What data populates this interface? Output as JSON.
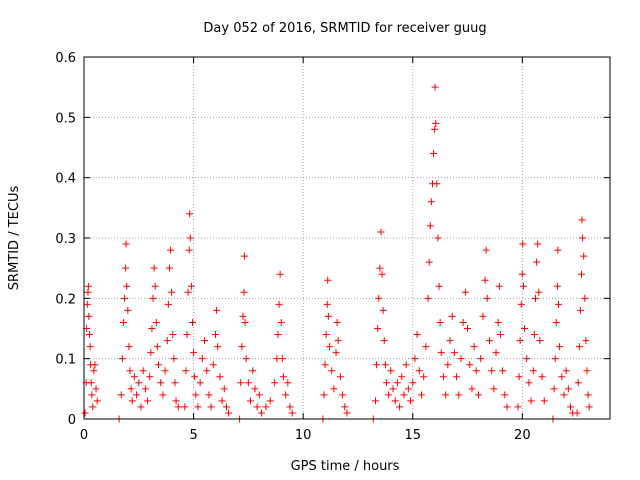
{
  "chart_data": {
    "type": "scatter",
    "title": "Day 052 of 2016, SRMTID for receiver guug",
    "xlabel": "GPS time / hours",
    "ylabel": "SRMTID / TECUs",
    "xlim": [
      0,
      24
    ],
    "ylim": [
      0,
      0.6
    ],
    "xticks": [
      0,
      5,
      10,
      15,
      20
    ],
    "yticks": [
      0,
      0.1,
      0.2,
      0.3,
      0.4,
      0.5,
      0.6
    ],
    "grid": true,
    "marker": "plus",
    "marker_color": "#ff0000",
    "series": [
      {
        "points": [
          [
            0.05,
            0.01
          ],
          [
            0.1,
            0.06
          ],
          [
            0.12,
            0.15
          ],
          [
            0.15,
            0.19
          ],
          [
            0.18,
            0.21
          ],
          [
            0.2,
            0.22
          ],
          [
            0.22,
            0.17
          ],
          [
            0.25,
            0.14
          ],
          [
            0.28,
            0.12
          ],
          [
            0.3,
            0.09
          ],
          [
            0.33,
            0.06
          ],
          [
            0.36,
            0.04
          ],
          [
            0.4,
            0.02
          ],
          [
            0.45,
            0.08
          ],
          [
            0.5,
            0.09
          ],
          [
            0.55,
            0.05
          ],
          [
            0.6,
            0.03
          ],
          [
            1.6,
            0.0
          ],
          [
            1.7,
            0.04
          ],
          [
            1.75,
            0.1
          ],
          [
            1.8,
            0.16
          ],
          [
            1.85,
            0.2
          ],
          [
            1.9,
            0.25
          ],
          [
            1.92,
            0.29
          ],
          [
            1.95,
            0.22
          ],
          [
            2.0,
            0.18
          ],
          [
            2.05,
            0.12
          ],
          [
            2.1,
            0.08
          ],
          [
            2.15,
            0.05
          ],
          [
            2.2,
            0.03
          ],
          [
            2.3,
            0.07
          ],
          [
            2.4,
            0.04
          ],
          [
            2.5,
            0.06
          ],
          [
            2.6,
            0.02
          ],
          [
            2.7,
            0.08
          ],
          [
            2.8,
            0.05
          ],
          [
            2.9,
            0.03
          ],
          [
            3.0,
            0.07
          ],
          [
            3.05,
            0.11
          ],
          [
            3.1,
            0.15
          ],
          [
            3.15,
            0.2
          ],
          [
            3.2,
            0.25
          ],
          [
            3.25,
            0.22
          ],
          [
            3.3,
            0.16
          ],
          [
            3.35,
            0.12
          ],
          [
            3.4,
            0.09
          ],
          [
            3.5,
            0.06
          ],
          [
            3.6,
            0.04
          ],
          [
            3.7,
            0.08
          ],
          [
            3.8,
            0.13
          ],
          [
            3.85,
            0.19
          ],
          [
            3.9,
            0.25
          ],
          [
            3.95,
            0.28
          ],
          [
            4.0,
            0.21
          ],
          [
            4.05,
            0.14
          ],
          [
            4.1,
            0.1
          ],
          [
            4.15,
            0.06
          ],
          [
            4.2,
            0.03
          ],
          [
            4.3,
            0.02
          ],
          [
            4.6,
            0.02
          ],
          [
            4.65,
            0.08
          ],
          [
            4.7,
            0.14
          ],
          [
            4.75,
            0.21
          ],
          [
            4.8,
            0.28
          ],
          [
            4.82,
            0.34
          ],
          [
            4.85,
            0.3
          ],
          [
            4.9,
            0.22
          ],
          [
            4.95,
            0.16
          ],
          [
            5.0,
            0.11
          ],
          [
            5.05,
            0.07
          ],
          [
            5.1,
            0.04
          ],
          [
            5.2,
            0.02
          ],
          [
            5.3,
            0.06
          ],
          [
            5.4,
            0.1
          ],
          [
            5.5,
            0.13
          ],
          [
            5.6,
            0.08
          ],
          [
            5.7,
            0.04
          ],
          [
            5.8,
            0.02
          ],
          [
            5.9,
            0.09
          ],
          [
            6.0,
            0.14
          ],
          [
            6.05,
            0.18
          ],
          [
            6.1,
            0.12
          ],
          [
            6.2,
            0.07
          ],
          [
            6.3,
            0.03
          ],
          [
            6.4,
            0.05
          ],
          [
            6.5,
            0.02
          ],
          [
            6.6,
            0.01
          ],
          [
            7.1,
            0.0
          ],
          [
            7.15,
            0.06
          ],
          [
            7.2,
            0.12
          ],
          [
            7.25,
            0.17
          ],
          [
            7.3,
            0.21
          ],
          [
            7.32,
            0.27
          ],
          [
            7.35,
            0.16
          ],
          [
            7.4,
            0.1
          ],
          [
            7.5,
            0.06
          ],
          [
            7.6,
            0.03
          ],
          [
            7.7,
            0.08
          ],
          [
            7.8,
            0.05
          ],
          [
            7.9,
            0.02
          ],
          [
            8.0,
            0.04
          ],
          [
            8.1,
            0.01
          ],
          [
            8.3,
            0.02
          ],
          [
            8.5,
            0.03
          ],
          [
            8.7,
            0.06
          ],
          [
            8.8,
            0.1
          ],
          [
            8.85,
            0.14
          ],
          [
            8.9,
            0.19
          ],
          [
            8.95,
            0.24
          ],
          [
            9.0,
            0.16
          ],
          [
            9.05,
            0.1
          ],
          [
            9.1,
            0.07
          ],
          [
            9.2,
            0.04
          ],
          [
            9.3,
            0.06
          ],
          [
            9.4,
            0.02
          ],
          [
            9.5,
            0.01
          ],
          [
            10.9,
            0.0
          ],
          [
            10.95,
            0.04
          ],
          [
            11.0,
            0.09
          ],
          [
            11.05,
            0.14
          ],
          [
            11.1,
            0.19
          ],
          [
            11.12,
            0.23
          ],
          [
            11.15,
            0.17
          ],
          [
            11.2,
            0.12
          ],
          [
            11.3,
            0.08
          ],
          [
            11.4,
            0.05
          ],
          [
            11.5,
            0.11
          ],
          [
            11.55,
            0.16
          ],
          [
            11.6,
            0.13
          ],
          [
            11.7,
            0.07
          ],
          [
            11.8,
            0.04
          ],
          [
            11.9,
            0.02
          ],
          [
            12.0,
            0.01
          ],
          [
            13.2,
            0.0
          ],
          [
            13.3,
            0.03
          ],
          [
            13.35,
            0.09
          ],
          [
            13.4,
            0.15
          ],
          [
            13.45,
            0.2
          ],
          [
            13.5,
            0.25
          ],
          [
            13.55,
            0.31
          ],
          [
            13.6,
            0.24
          ],
          [
            13.65,
            0.18
          ],
          [
            13.7,
            0.13
          ],
          [
            13.75,
            0.09
          ],
          [
            13.8,
            0.06
          ],
          [
            13.9,
            0.04
          ],
          [
            14.0,
            0.08
          ],
          [
            14.1,
            0.05
          ],
          [
            14.2,
            0.03
          ],
          [
            14.3,
            0.06
          ],
          [
            14.4,
            0.02
          ],
          [
            14.5,
            0.07
          ],
          [
            14.6,
            0.04
          ],
          [
            14.7,
            0.09
          ],
          [
            14.8,
            0.05
          ],
          [
            14.9,
            0.03
          ],
          [
            15.0,
            0.06
          ],
          [
            15.1,
            0.1
          ],
          [
            15.2,
            0.14
          ],
          [
            15.3,
            0.08
          ],
          [
            15.4,
            0.04
          ],
          [
            15.5,
            0.07
          ],
          [
            15.6,
            0.12
          ],
          [
            15.7,
            0.2
          ],
          [
            15.75,
            0.26
          ],
          [
            15.8,
            0.32
          ],
          [
            15.85,
            0.36
          ],
          [
            15.9,
            0.39
          ],
          [
            15.95,
            0.44
          ],
          [
            16.0,
            0.48
          ],
          [
            16.02,
            0.55
          ],
          [
            16.05,
            0.49
          ],
          [
            16.1,
            0.39
          ],
          [
            16.15,
            0.3
          ],
          [
            16.2,
            0.22
          ],
          [
            16.25,
            0.16
          ],
          [
            16.3,
            0.11
          ],
          [
            16.4,
            0.07
          ],
          [
            16.5,
            0.04
          ],
          [
            16.6,
            0.09
          ],
          [
            16.7,
            0.13
          ],
          [
            16.8,
            0.17
          ],
          [
            16.9,
            0.11
          ],
          [
            17.0,
            0.07
          ],
          [
            17.1,
            0.04
          ],
          [
            17.2,
            0.1
          ],
          [
            17.3,
            0.16
          ],
          [
            17.4,
            0.21
          ],
          [
            17.5,
            0.15
          ],
          [
            17.6,
            0.09
          ],
          [
            17.7,
            0.05
          ],
          [
            17.8,
            0.12
          ],
          [
            17.9,
            0.08
          ],
          [
            18.0,
            0.04
          ],
          [
            18.1,
            0.1
          ],
          [
            18.2,
            0.17
          ],
          [
            18.3,
            0.23
          ],
          [
            18.35,
            0.28
          ],
          [
            18.4,
            0.2
          ],
          [
            18.5,
            0.13
          ],
          [
            18.6,
            0.08
          ],
          [
            18.7,
            0.05
          ],
          [
            18.8,
            0.11
          ],
          [
            18.9,
            0.16
          ],
          [
            18.95,
            0.22
          ],
          [
            19.0,
            0.14
          ],
          [
            19.1,
            0.08
          ],
          [
            19.2,
            0.04
          ],
          [
            19.3,
            0.02
          ],
          [
            19.8,
            0.02
          ],
          [
            19.85,
            0.07
          ],
          [
            19.9,
            0.13
          ],
          [
            19.95,
            0.19
          ],
          [
            20.0,
            0.24
          ],
          [
            20.02,
            0.29
          ],
          [
            20.05,
            0.22
          ],
          [
            20.1,
            0.15
          ],
          [
            20.2,
            0.1
          ],
          [
            20.3,
            0.06
          ],
          [
            20.4,
            0.03
          ],
          [
            20.5,
            0.08
          ],
          [
            20.55,
            0.14
          ],
          [
            20.6,
            0.2
          ],
          [
            20.65,
            0.26
          ],
          [
            20.7,
            0.29
          ],
          [
            20.75,
            0.21
          ],
          [
            20.8,
            0.13
          ],
          [
            20.9,
            0.07
          ],
          [
            21.0,
            0.03
          ],
          [
            21.4,
            0.0
          ],
          [
            21.45,
            0.05
          ],
          [
            21.5,
            0.1
          ],
          [
            21.55,
            0.16
          ],
          [
            21.6,
            0.22
          ],
          [
            21.62,
            0.28
          ],
          [
            21.65,
            0.19
          ],
          [
            21.7,
            0.12
          ],
          [
            21.8,
            0.07
          ],
          [
            21.9,
            0.04
          ],
          [
            22.0,
            0.08
          ],
          [
            22.1,
            0.05
          ],
          [
            22.2,
            0.02
          ],
          [
            22.3,
            0.01
          ],
          [
            22.5,
            0.01
          ],
          [
            22.55,
            0.06
          ],
          [
            22.6,
            0.12
          ],
          [
            22.65,
            0.18
          ],
          [
            22.7,
            0.24
          ],
          [
            22.72,
            0.33
          ],
          [
            22.75,
            0.3
          ],
          [
            22.8,
            0.27
          ],
          [
            22.85,
            0.2
          ],
          [
            22.9,
            0.13
          ],
          [
            22.95,
            0.08
          ],
          [
            23.0,
            0.04
          ],
          [
            23.05,
            0.02
          ]
        ]
      }
    ]
  }
}
